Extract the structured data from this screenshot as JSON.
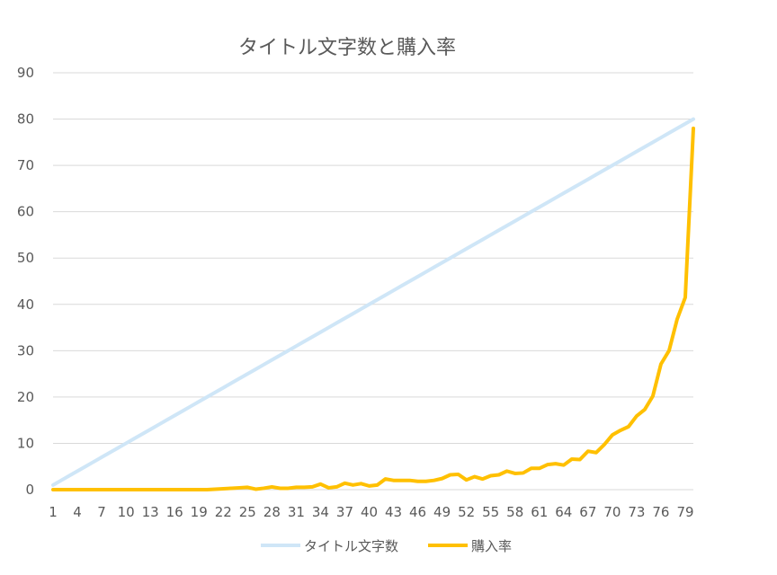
{
  "chart_data": {
    "type": "line",
    "title": "タイトル文字数と購入率",
    "xlabel": "",
    "ylabel": "",
    "ylim": [
      0,
      90
    ],
    "yticks": [
      0,
      10,
      20,
      30,
      40,
      50,
      60,
      70,
      80,
      90
    ],
    "xlim": [
      1,
      80
    ],
    "xtick_labels": [
      "1",
      "4",
      "7",
      "10",
      "13",
      "16",
      "19",
      "22",
      "25",
      "28",
      "31",
      "34",
      "37",
      "40",
      "43",
      "46",
      "49",
      "52",
      "55",
      "58",
      "61",
      "64",
      "67",
      "70",
      "73",
      "76",
      "79"
    ],
    "grid": true,
    "legend_position": "bottom",
    "colors": {
      "title_length": "#cfe6f7",
      "purchase_rate": "#ffc000",
      "grid": "#d9d9d9",
      "text": "#595959"
    },
    "x": [
      1,
      2,
      3,
      4,
      5,
      6,
      7,
      8,
      9,
      10,
      11,
      12,
      13,
      14,
      15,
      16,
      17,
      18,
      19,
      20,
      21,
      22,
      23,
      24,
      25,
      26,
      27,
      28,
      29,
      30,
      31,
      32,
      33,
      34,
      35,
      36,
      37,
      38,
      39,
      40,
      41,
      42,
      43,
      44,
      45,
      46,
      47,
      48,
      49,
      50,
      51,
      52,
      53,
      54,
      55,
      56,
      57,
      58,
      59,
      60,
      61,
      62,
      63,
      64,
      65,
      66,
      67,
      68,
      69,
      70,
      71,
      72,
      73,
      74,
      75,
      76,
      77,
      78,
      79,
      80
    ],
    "series": [
      {
        "name": "タイトル文字数",
        "values": [
          1,
          2,
          3,
          4,
          5,
          6,
          7,
          8,
          9,
          10,
          11,
          12,
          13,
          14,
          15,
          16,
          17,
          18,
          19,
          20,
          21,
          22,
          23,
          24,
          25,
          26,
          27,
          28,
          29,
          30,
          31,
          32,
          33,
          34,
          35,
          36,
          37,
          38,
          39,
          40,
          41,
          42,
          43,
          44,
          45,
          46,
          47,
          48,
          49,
          50,
          51,
          52,
          53,
          54,
          55,
          56,
          57,
          58,
          59,
          60,
          61,
          62,
          63,
          64,
          65,
          66,
          67,
          68,
          69,
          70,
          71,
          72,
          73,
          74,
          75,
          76,
          77,
          78,
          79,
          80
        ]
      },
      {
        "name": "購入率",
        "values": [
          0,
          0,
          0,
          0,
          0,
          0,
          0,
          0,
          0,
          0,
          0,
          0,
          0,
          0,
          0,
          0,
          0,
          0,
          0,
          0,
          0.1,
          0.2,
          0.3,
          0.4,
          0.5,
          0.1,
          0.3,
          0.6,
          0.3,
          0.3,
          0.5,
          0.5,
          0.6,
          1.2,
          0.4,
          0.6,
          1.4,
          1.0,
          1.3,
          0.8,
          1.0,
          2.3,
          2.0,
          2.0,
          2.0,
          1.8,
          1.8,
          2.0,
          2.4,
          3.2,
          3.3,
          2.1,
          2.8,
          2.3,
          3.0,
          3.2,
          4.0,
          3.5,
          3.6,
          4.6,
          4.6,
          5.4,
          5.6,
          5.3,
          6.6,
          6.5,
          8.3,
          8.0,
          9.7,
          11.8,
          12.8,
          13.6,
          15.9,
          17.3,
          20.2,
          27.1,
          30.0,
          36.8,
          41.5,
          78.0
        ]
      }
    ]
  }
}
